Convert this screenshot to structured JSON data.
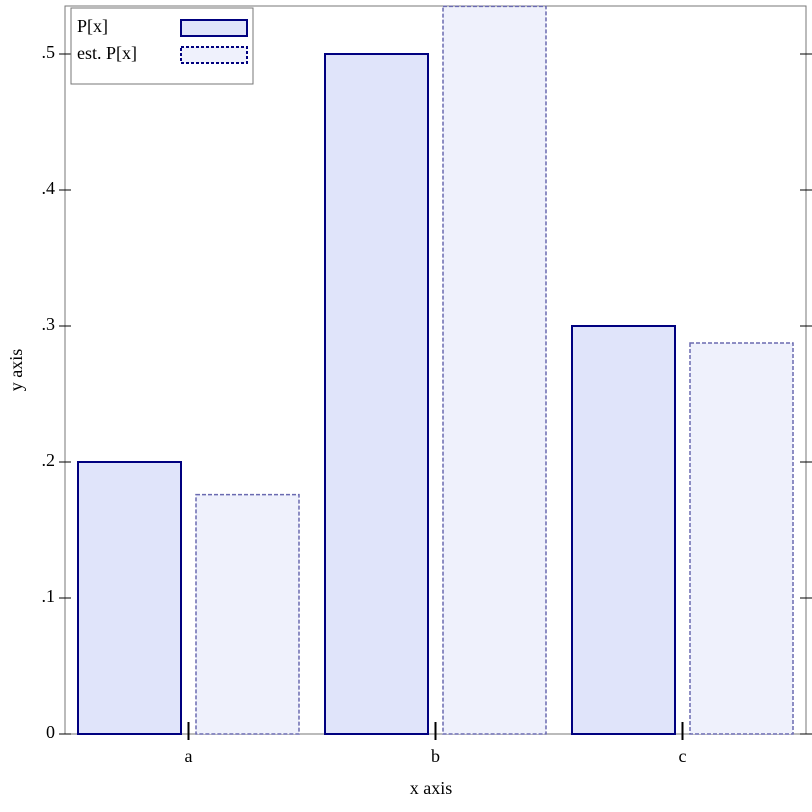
{
  "chart_data": {
    "type": "bar",
    "x_label": "x axis",
    "y_label": "y axis",
    "categories": [
      "a",
      "b",
      "c"
    ],
    "series": [
      {
        "name": "P[x]",
        "color": "#e0e4fa",
        "stroke": "#00007f",
        "border": "solid",
        "values": [
          0.2,
          0.5,
          0.3
        ]
      },
      {
        "name": "est. P[x]",
        "color": "#eff1fc",
        "stroke": "#6a6ab0",
        "border": "dashed",
        "values": [
          0.176,
          0.535,
          0.2875
        ]
      }
    ],
    "ylim": [
      0,
      0.5353
    ],
    "yticks": [
      0,
      {
        "value": 0.1,
        "label": ".1"
      },
      {
        "value": 0.2,
        "label": ".2"
      },
      {
        "value": 0.3,
        "label": ".3"
      },
      {
        "value": 0.4,
        "label": ".4"
      },
      {
        "value": 0.5,
        "label": ".5"
      }
    ],
    "legend": "top-left"
  }
}
